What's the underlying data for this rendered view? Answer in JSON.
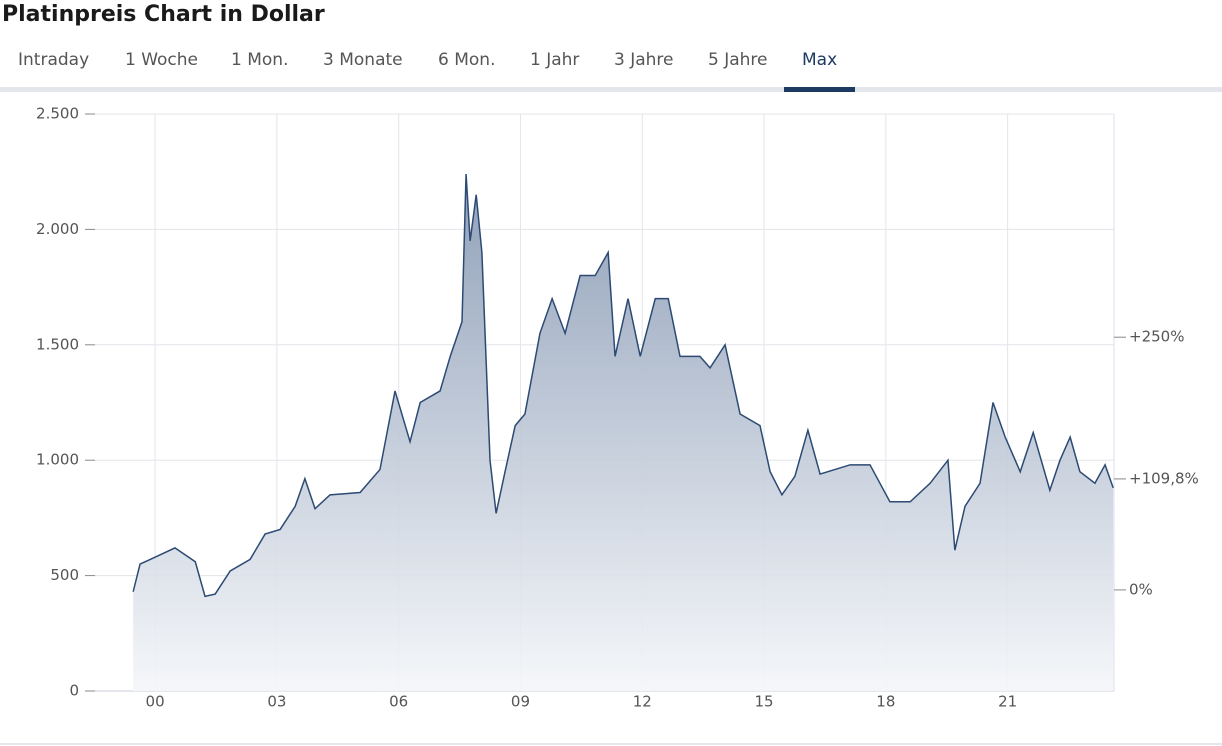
{
  "header": {
    "title": "Platinpreis Chart in Dollar"
  },
  "tabs": [
    "Intraday",
    "1 Woche",
    "1 Mon.",
    "3 Monate",
    "6 Mon.",
    "1 Jahr",
    "3 Jahre",
    "5 Jahre",
    "Max"
  ],
  "chart_data": {
    "type": "area",
    "grid": true,
    "x": [
      -0.54,
      -0.37,
      -0.12,
      0.49,
      0.99,
      1.23,
      1.48,
      1.85,
      2.34,
      2.71,
      3.08,
      3.45,
      3.69,
      3.94,
      4.31,
      5.05,
      5.54,
      5.91,
      6.28,
      6.53,
      7.02,
      7.27,
      7.56,
      7.66,
      7.76,
      7.91,
      8.05,
      8.25,
      8.4,
      8.62,
      8.87,
      9.11,
      9.48,
      9.78,
      10.1,
      10.47,
      10.84,
      11.16,
      11.33,
      11.65,
      11.95,
      12.32,
      12.64,
      12.93,
      13.42,
      13.67,
      14.04,
      14.41,
      14.9,
      15.15,
      15.44,
      15.76,
      16.08,
      16.38,
      17.12,
      17.61,
      18.1,
      18.6,
      19.09,
      19.53,
      19.7,
      19.95,
      20.32,
      20.64,
      20.94,
      21.31,
      21.63,
      22.04,
      22.29,
      22.54,
      22.78,
      23.15,
      23.4,
      23.6
    ],
    "series": [
      {
        "color": "#2c4a73",
        "values": [
          430,
          550,
          570,
          620,
          560,
          410,
          420,
          520,
          570,
          680,
          700,
          800,
          920,
          790,
          850,
          860,
          960,
          1300,
          1080,
          1250,
          1300,
          1450,
          1600,
          2240,
          1950,
          2150,
          1900,
          1000,
          770,
          950,
          1150,
          1200,
          1550,
          1700,
          1550,
          1800,
          1800,
          1900,
          1450,
          1700,
          1450,
          1700,
          1700,
          1450,
          1450,
          1400,
          1500,
          1200,
          1150,
          950,
          850,
          930,
          1130,
          940,
          980,
          980,
          820,
          820,
          900,
          1000,
          610,
          800,
          900,
          1250,
          1100,
          950,
          1120,
          870,
          1000,
          1100,
          950,
          900,
          980,
          880
        ]
      }
    ],
    "xlim": [
      -1.48,
      23.62
    ],
    "xticks": [
      {
        "value": 0,
        "label": "00"
      },
      {
        "value": 3,
        "label": "03"
      },
      {
        "value": 6,
        "label": "06"
      },
      {
        "value": 9,
        "label": "09"
      },
      12,
      15,
      18,
      21
    ],
    "ylim": [
      0,
      2500
    ],
    "yticks": [
      0,
      500,
      {
        "value": 1000,
        "label": "1.000"
      },
      {
        "value": 1500,
        "label": "1.500"
      },
      {
        "value": 2000,
        "label": "2.000"
      },
      {
        "value": 2500,
        "label": "2.500"
      }
    ],
    "y2lim": [
      -100,
      470.8
    ],
    "y2ticks": [
      {
        "value": 0,
        "label": "0%"
      },
      {
        "value": 109.8,
        "label": "+109,8%"
      },
      {
        "value": 250,
        "label": "+250%"
      }
    ]
  }
}
